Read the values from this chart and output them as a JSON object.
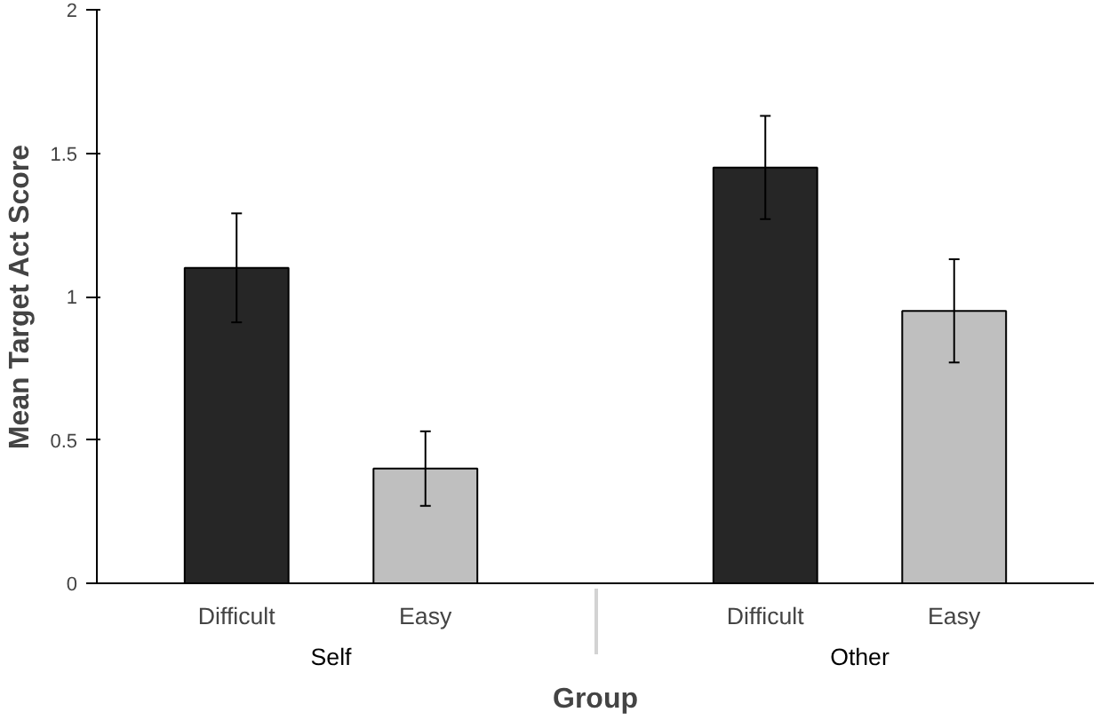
{
  "chart_data": {
    "type": "bar",
    "xlabel": "Group",
    "ylabel": "Mean Target Act Score",
    "categories": [
      "Difficult",
      "Easy",
      "Difficult",
      "Easy"
    ],
    "values": [
      1.1,
      0.4,
      1.45,
      0.95
    ],
    "colors": [
      "#262626",
      "#bfbfbf",
      "#262626",
      "#bfbfbf"
    ],
    "errors": [
      0.19,
      0.13,
      0.18,
      0.18
    ],
    "ylim": [
      0,
      2
    ],
    "yticks": [
      0,
      0.5,
      1,
      1.5,
      2
    ],
    "annotations": [
      "Self",
      "Other"
    ],
    "grid": false
  }
}
